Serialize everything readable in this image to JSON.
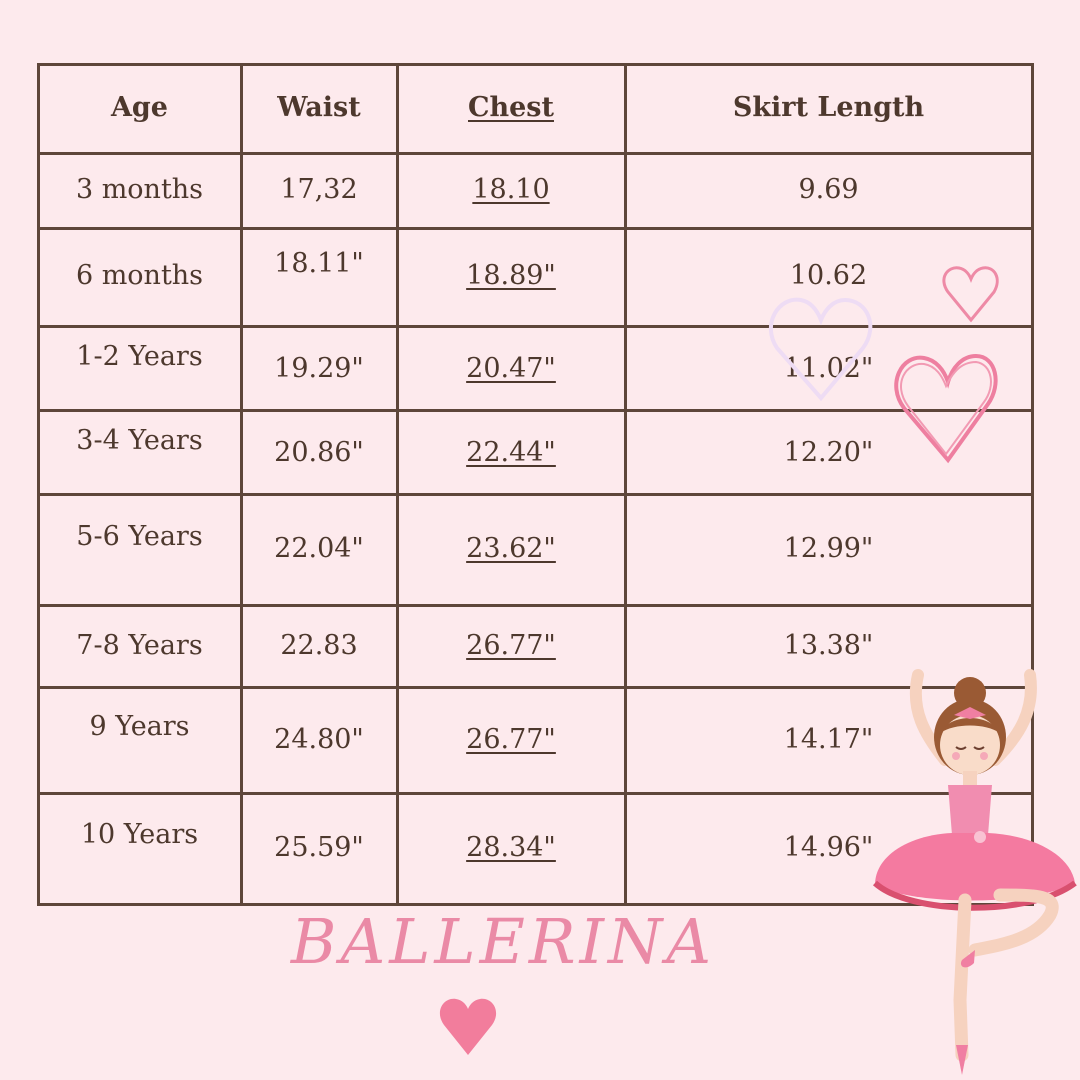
{
  "table": {
    "headers": [
      "Age",
      "Waist",
      "Chest",
      "Skirt Length"
    ],
    "rows": [
      [
        "3 months",
        "17,32",
        "18.10",
        "9.69"
      ],
      [
        "6 months",
        "18.11\"",
        "18.89\"",
        "10.62"
      ],
      [
        "1-2 Years",
        "19.29\"",
        "20.47\"",
        "11.02\""
      ],
      [
        "3-4 Years",
        "20.86\"",
        "22.44\"",
        "12.20\""
      ],
      [
        "5-6 Years",
        "22.04\"",
        "23.62\"",
        "12.99\""
      ],
      [
        "7-8 Years",
        "22.83",
        "26.77\"",
        "13.38\""
      ],
      [
        "9 Years",
        "24.80\"",
        "26.77\"",
        "14.17\""
      ],
      [
        "10 Years",
        "25.59\"",
        "28.34\"",
        "14.96\""
      ]
    ]
  },
  "title": "BALLERINA",
  "colors": {
    "background": "#fdeaed",
    "border": "#5e463a",
    "text": "#4d382d",
    "accent_pink": "#f27d9c"
  },
  "icons": [
    "heart-outline-icon",
    "heart-filled-icon",
    "ballerina-illustration"
  ]
}
